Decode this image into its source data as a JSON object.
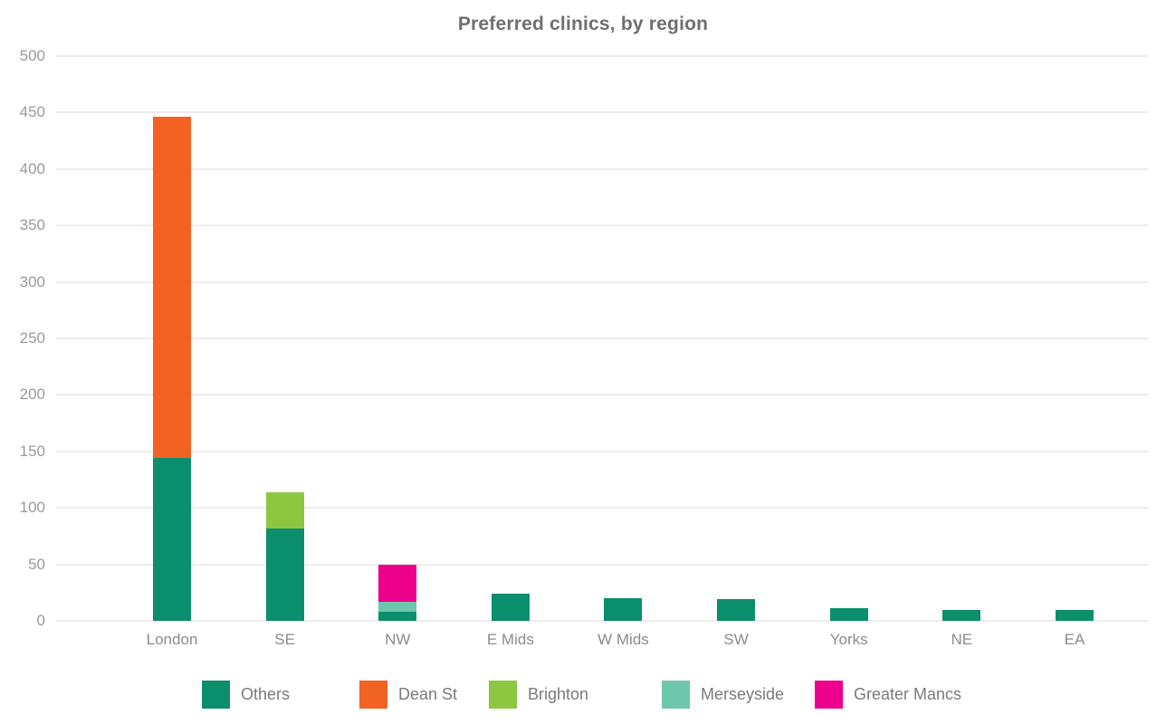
{
  "chart_data": {
    "type": "bar",
    "stacked": true,
    "title": "Preferred clinics, by region",
    "xlabel": "",
    "ylabel": "",
    "categories": [
      "London",
      "SE",
      "NW",
      "E Mids",
      "W Mids",
      "SW",
      "Yorks",
      "NE",
      "EA"
    ],
    "series": [
      {
        "name": "Others",
        "color": "#0b8e6c",
        "values": [
          144,
          82,
          8,
          24,
          20,
          19,
          11,
          10,
          10
        ]
      },
      {
        "name": "Dean St",
        "color": "#f26223",
        "values": [
          302,
          0,
          0,
          0,
          0,
          0,
          0,
          0,
          0
        ]
      },
      {
        "name": "Brighton",
        "color": "#8dc640",
        "values": [
          0,
          32,
          0,
          0,
          0,
          0,
          0,
          0,
          0
        ]
      },
      {
        "name": "Merseyside",
        "color": "#6ec7ad",
        "values": [
          0,
          0,
          9,
          0,
          0,
          0,
          0,
          0,
          0
        ]
      },
      {
        "name": "Greater Mancs",
        "color": "#ec008c",
        "values": [
          0,
          0,
          33,
          0,
          0,
          0,
          0,
          0,
          0
        ]
      }
    ],
    "totals": [
      446,
      114,
      50,
      24,
      20,
      19,
      11,
      10,
      10
    ],
    "ylim": [
      0,
      500
    ],
    "yticks": [
      0,
      50,
      100,
      150,
      200,
      250,
      300,
      350,
      400,
      450,
      500
    ],
    "grid": true,
    "legend_position": "bottom"
  }
}
